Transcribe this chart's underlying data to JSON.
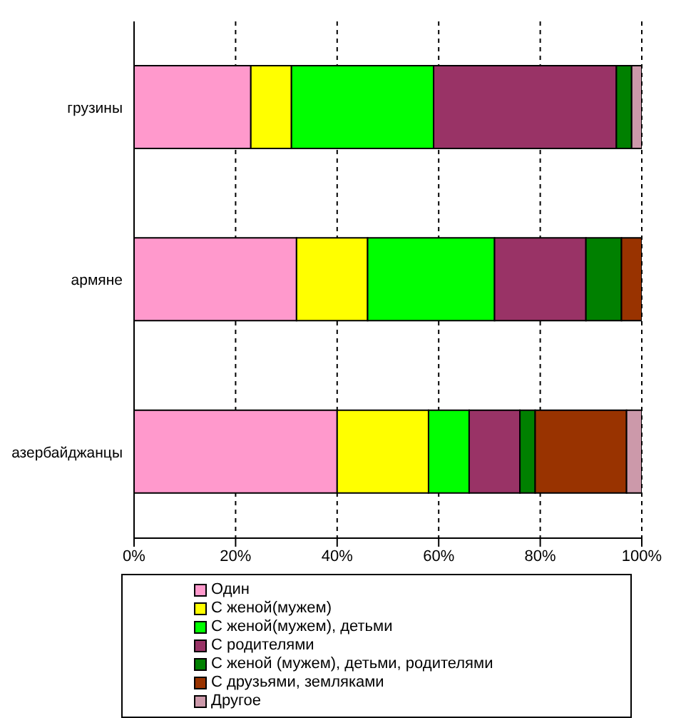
{
  "chart_data": {
    "type": "bar",
    "orientation": "horizontal",
    "stacked": true,
    "categories": [
      "грузины",
      "армяне",
      "азербайджанцы"
    ],
    "series": [
      {
        "name": "Один",
        "color": "#ff99cc",
        "values": [
          23,
          32,
          40
        ]
      },
      {
        "name": "С женой(мужем)",
        "color": "#ffff00",
        "values": [
          8,
          14,
          18
        ]
      },
      {
        "name": "С женой(мужем), детьми",
        "color": "#00ff00",
        "values": [
          28,
          25,
          8
        ]
      },
      {
        "name": "С родителями",
        "color": "#993366",
        "values": [
          36,
          18,
          10
        ]
      },
      {
        "name": "С женой (мужем), детьми, родителями",
        "color": "#008000",
        "values": [
          3,
          7,
          3
        ]
      },
      {
        "name": "С друзьями, земляками",
        "color": "#993300",
        "values": [
          0,
          4,
          18
        ]
      },
      {
        "name": "Другое",
        "color": "#cc99aa",
        "values": [
          2,
          0,
          3
        ]
      }
    ],
    "xlim": [
      0,
      100
    ],
    "xticks": [
      {
        "value": 0,
        "label": "0%"
      },
      {
        "value": 20,
        "label": "20%"
      },
      {
        "value": 40,
        "label": "40%"
      },
      {
        "value": 60,
        "label": "60%"
      },
      {
        "value": 80,
        "label": "80%"
      },
      {
        "value": 100,
        "label": "100%"
      }
    ],
    "grid": "x",
    "legend": "bottom"
  }
}
